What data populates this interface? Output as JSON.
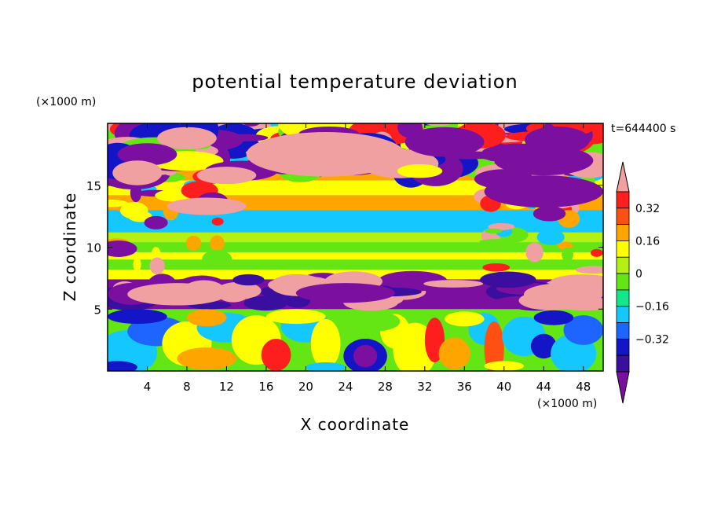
{
  "chart_data": {
    "type": "heatmap",
    "title": "potential temperature deviation",
    "xlabel": "X coordinate",
    "ylabel": "Z coordinate",
    "x_unit_label": "(×1000 m)",
    "y_unit_label": "(×1000 m)",
    "time_label": "t=644400 s",
    "xlim": [
      0,
      50
    ],
    "ylim": [
      0,
      20
    ],
    "x_ticks": [
      4,
      8,
      12,
      16,
      20,
      24,
      28,
      32,
      36,
      40,
      44,
      48
    ],
    "y_ticks": [
      5,
      10,
      15
    ],
    "colorbar": {
      "levels": [
        -0.4,
        -0.32,
        -0.24,
        -0.16,
        -0.08,
        0,
        0.08,
        0.16,
        0.24,
        0.32,
        0.4
      ],
      "tick_labels": [
        "0.32",
        "0.16",
        "0",
        "−0.16",
        "−0.32"
      ],
      "tick_values": [
        0.32,
        0.16,
        0,
        -0.16,
        -0.32
      ],
      "colors": [
        "#7b10a0",
        "#3a0fa0",
        "#1515c8",
        "#1e64ff",
        "#14c8ff",
        "#14e68c",
        "#64e614",
        "#b4f014",
        "#ffff00",
        "#ffa500",
        "#ff5014",
        "#ff1e1e",
        "#f0a0a0"
      ],
      "extend": "both"
    },
    "field_description": {
      "bands": [
        {
          "z_range": [
            16.5,
            20
          ],
          "pattern": "mixed purple and pink patches"
        },
        {
          "z_range": [
            13,
            16
          ],
          "pattern": "orange, red and pink layers"
        },
        {
          "z_range": [
            10.5,
            13
          ],
          "pattern": "cyan and green band"
        },
        {
          "z_range": [
            7.5,
            10.5
          ],
          "pattern": "green and yellow stripes"
        },
        {
          "z_range": [
            5,
            7.5
          ],
          "pattern": "purple and pink band"
        },
        {
          "z_range": [
            0,
            5
          ],
          "pattern": "convective eddies of blue, cyan, yellow, red"
        }
      ]
    }
  }
}
